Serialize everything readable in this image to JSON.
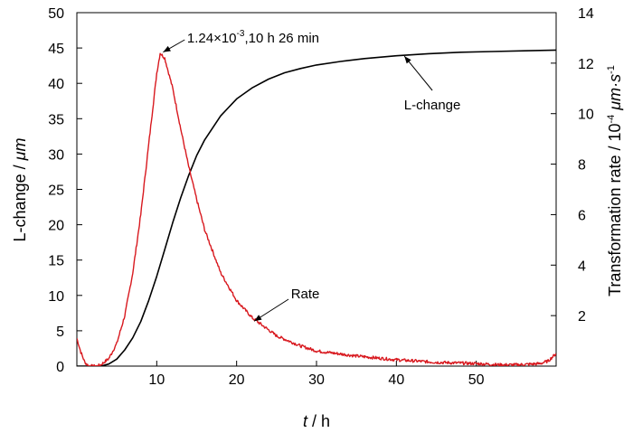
{
  "chart_data": {
    "type": "line",
    "x_axis": {
      "label_italic": "t",
      "label_rest": " / h",
      "range": [
        0,
        60
      ],
      "ticks": [
        10,
        20,
        30,
        40,
        50
      ],
      "tick_labels": [
        "10",
        "20",
        "30",
        "40",
        "50"
      ]
    },
    "y_left": {
      "label": "L-change / ",
      "label_unit": "μm",
      "range": [
        0,
        50
      ],
      "ticks": [
        0,
        5,
        10,
        15,
        20,
        25,
        30,
        35,
        40,
        45,
        50
      ],
      "tick_labels": [
        "0",
        "5",
        "10",
        "15",
        "20",
        "25",
        "30",
        "35",
        "40",
        "45",
        "50"
      ]
    },
    "y_right": {
      "label_main": "Transformation rate / 10",
      "label_exp": "-4",
      "label_unit": " μm·s",
      "label_unit_exp": "-1",
      "range": [
        0,
        14
      ],
      "ticks": [
        2,
        4,
        6,
        8,
        10,
        12,
        14
      ],
      "tick_labels": [
        "2",
        "4",
        "6",
        "8",
        "10",
        "12",
        "14"
      ]
    },
    "grid": false,
    "series": [
      {
        "name": "L-change",
        "axis": "left",
        "color": "#000000",
        "x": [
          0,
          3,
          4,
          5,
          6,
          7,
          8,
          9,
          10,
          11,
          12,
          13,
          14,
          15,
          16,
          18,
          20,
          22,
          24,
          26,
          28,
          30,
          33,
          36,
          40,
          44,
          48,
          52,
          56,
          60
        ],
        "y": [
          0,
          0,
          0.3,
          1.0,
          2.3,
          4.0,
          6.3,
          9.3,
          12.7,
          16.5,
          20.3,
          23.8,
          27.0,
          29.8,
          32.0,
          35.4,
          37.8,
          39.4,
          40.6,
          41.5,
          42.1,
          42.6,
          43.1,
          43.5,
          43.9,
          44.2,
          44.4,
          44.5,
          44.6,
          44.7
        ]
      },
      {
        "name": "Rate",
        "axis": "right",
        "color": "#d8181e",
        "x": [
          0,
          0.5,
          1,
          1.5,
          2,
          2.5,
          3,
          4,
          5,
          6,
          7,
          8,
          9,
          10,
          10.43,
          11,
          12,
          13,
          14,
          15,
          16,
          18,
          20,
          22,
          25,
          28,
          30,
          35,
          40,
          45,
          50,
          53,
          55,
          57,
          58,
          59,
          60
        ],
        "y": [
          1.1,
          0.55,
          0.15,
          0,
          0,
          0,
          0.05,
          0.3,
          0.9,
          2.0,
          3.7,
          6.0,
          8.8,
          11.6,
          12.4,
          12.2,
          11.0,
          9.4,
          7.9,
          6.6,
          5.4,
          3.7,
          2.6,
          1.9,
          1.2,
          0.8,
          0.6,
          0.4,
          0.25,
          0.15,
          0.1,
          0.05,
          0.05,
          0.08,
          0.1,
          0.2,
          0.5
        ]
      }
    ],
    "annotations": [
      {
        "text": "L-change",
        "series": "L-change"
      },
      {
        "text": "Rate",
        "series": "Rate"
      },
      {
        "text_base": "1.24×10",
        "text_exp": "-3",
        "text_rest": ",10 h  26 min",
        "series": "Rate"
      }
    ]
  }
}
